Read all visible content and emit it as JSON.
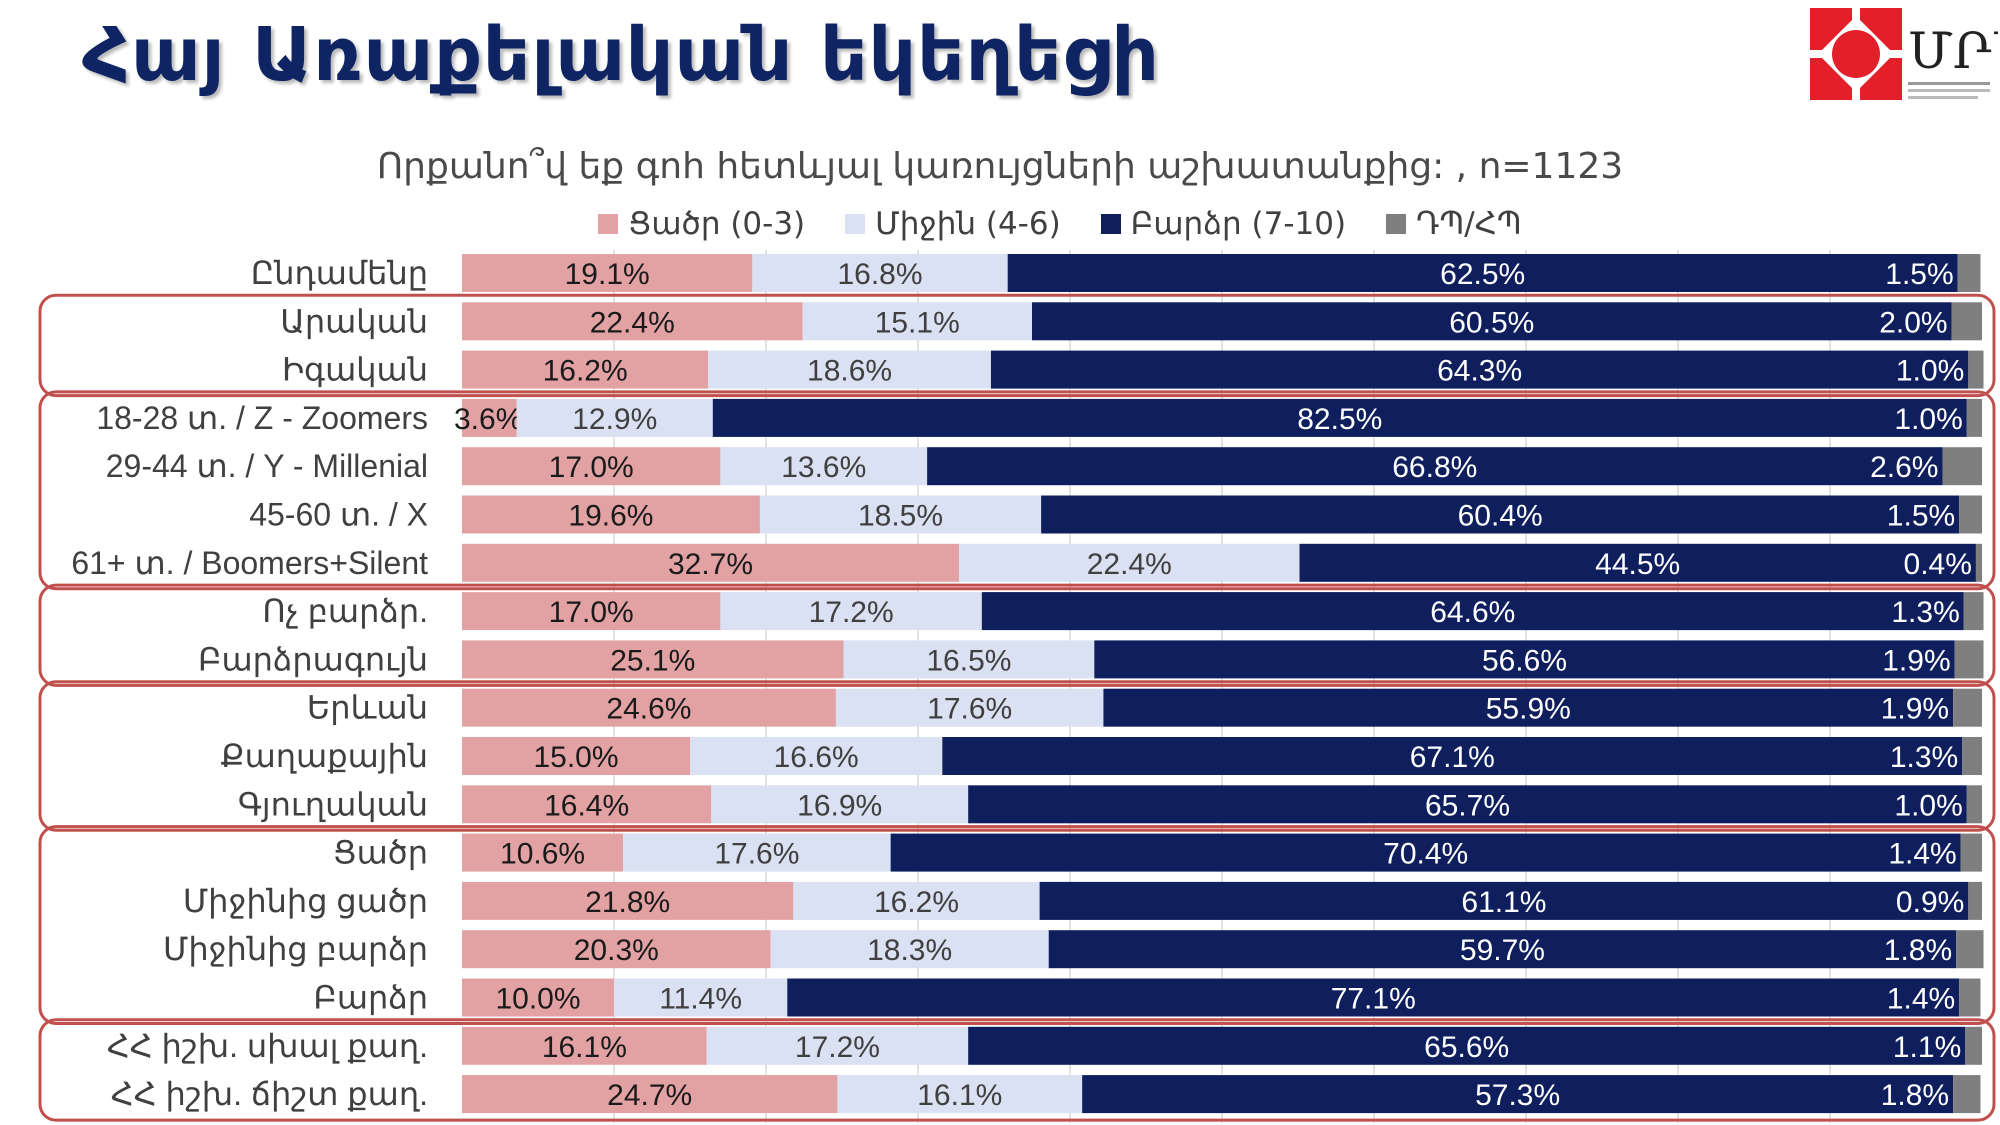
{
  "page": {
    "title": "Հայ Առաքելական եկեղեցի"
  },
  "logo": {
    "text": "ՄՐՄ",
    "caption": [
      "",
      "",
      "",
      ""
    ]
  },
  "chart_data": {
    "type": "bar",
    "stacked": true,
    "orientation": "horizontal",
    "title": "Որքանո՞վ եք գոհ հետևյալ կառույցների աշխատանքից: , n=1123",
    "xlim": [
      0,
      100
    ],
    "categories": [
      "Ընդամենը",
      "Արական",
      "Իգական",
      "18-28 տ. / Z - Zoomers",
      "29-44 տ. / Y - Millenial",
      "45-60 տ. / X",
      "61+ տ. / Boomers+Silent",
      "Ոչ բարձր.",
      "Բարձրագույն",
      "Երևան",
      "Քաղաքային",
      "Գյուղական",
      "Ցածր",
      "Միջինից ցածր",
      "Միջինից բարձր",
      "Բարձր",
      "ՀՀ իշխ. սխալ քաղ.",
      "ՀՀ իշխ. ճիշտ քաղ."
    ],
    "groups": [
      [
        0,
        0
      ],
      [
        1,
        2
      ],
      [
        3,
        6
      ],
      [
        7,
        8
      ],
      [
        9,
        11
      ],
      [
        12,
        15
      ],
      [
        16,
        17
      ]
    ],
    "series": [
      {
        "name": "Ցածր (0-3)",
        "color": "#e2a2a4",
        "label_color": "#1a1a1a",
        "values": [
          19.1,
          22.4,
          16.2,
          3.6,
          17.0,
          19.6,
          32.7,
          17.0,
          25.1,
          24.6,
          15.0,
          16.4,
          10.6,
          21.8,
          20.3,
          10.0,
          16.1,
          24.7
        ],
        "labels": [
          "19.1%",
          "22.4%",
          "16.2%",
          "3.6%",
          "17.0%",
          "19.6%",
          "32.7%",
          "17.0%",
          "25.1%",
          "24.6%",
          "15.0%",
          "16.4%",
          "10.6%",
          "21.8%",
          "20.3%",
          "10.0%",
          "16.1%",
          "24.7%"
        ]
      },
      {
        "name": "Միջին (4-6)",
        "color": "#d9e1f2",
        "label_color": "#404040",
        "values": [
          16.8,
          15.1,
          18.6,
          12.9,
          13.6,
          18.5,
          22.4,
          17.2,
          16.5,
          17.6,
          16.6,
          16.9,
          17.6,
          16.2,
          18.3,
          11.4,
          17.2,
          16.1
        ],
        "labels": [
          "16.8%",
          "15.1%",
          "18.6%",
          "12.9%",
          "13.6%",
          "18.5%",
          "22.4%",
          "17.2%",
          "16.5%",
          "17.6%",
          "16.6%",
          "16.9%",
          "17.6%",
          "16.2%",
          "18.3%",
          "11.4%",
          "17.2%",
          "16.1%"
        ]
      },
      {
        "name": "Բարձր (7-10)",
        "color": "#0f1f5e",
        "label_color": "#ffffff",
        "values": [
          62.5,
          60.5,
          64.3,
          82.5,
          66.8,
          60.4,
          44.5,
          64.6,
          56.6,
          55.9,
          67.1,
          65.7,
          70.4,
          61.1,
          59.7,
          77.1,
          65.6,
          57.3
        ],
        "labels": [
          "62.5%",
          "60.5%",
          "64.3%",
          "82.5%",
          "66.8%",
          "60.4%",
          "44.5%",
          "64.6%",
          "56.6%",
          "55.9%",
          "67.1%",
          "65.7%",
          "70.4%",
          "61.1%",
          "59.7%",
          "77.1%",
          "65.6%",
          "57.3%"
        ]
      },
      {
        "name": "ԴՊ/ՀՊ",
        "color": "#7f7f7f",
        "label_color": "#ffffff",
        "values": [
          1.5,
          2.0,
          1.0,
          1.0,
          2.6,
          1.5,
          0.4,
          1.3,
          1.9,
          1.9,
          1.3,
          1.0,
          1.4,
          0.9,
          1.8,
          1.4,
          1.1,
          1.8
        ],
        "labels": [
          "1.5%",
          "2.0%",
          "1.0%",
          "1.0%",
          "2.6%",
          "1.5%",
          "0.4%",
          "1.3%",
          "1.9%",
          "1.9%",
          "1.3%",
          "1.0%",
          "1.4%",
          "0.9%",
          "1.8%",
          "1.4%",
          "1.1%",
          "1.8%"
        ]
      }
    ],
    "group_border_color": "#c0504d",
    "gridlines": true
  }
}
